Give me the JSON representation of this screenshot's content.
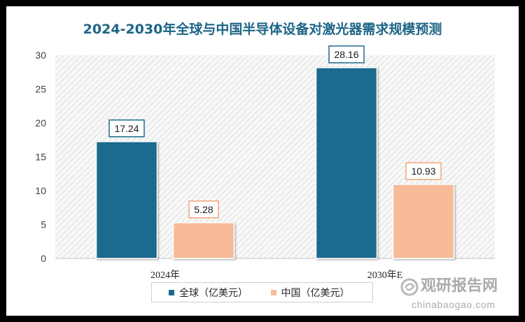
{
  "chart_data": {
    "type": "bar",
    "title": "2024-2030年全球与中国半导体设备对激光器需求规模预测",
    "categories": [
      "2024年",
      "2030年E"
    ],
    "series": [
      {
        "name": "全球（亿美元）",
        "values": [
          17.24,
          28.16
        ],
        "color": "#1f6b8d",
        "label_border": "#1f6b8d"
      },
      {
        "name": "中国（亿美元）",
        "values": [
          5.28,
          10.93
        ],
        "color": "#f7bb98",
        "label_border": "#f2a47a"
      }
    ],
    "ylim": [
      0,
      30
    ],
    "yticks": [
      0,
      5,
      10,
      15,
      20,
      25,
      30
    ],
    "grid": false,
    "legend": "bottom",
    "data_labels": true
  },
  "watermark": {
    "brand": "观研报告网",
    "url": "chinabaogao.com",
    "color": "#9a9a9a"
  }
}
